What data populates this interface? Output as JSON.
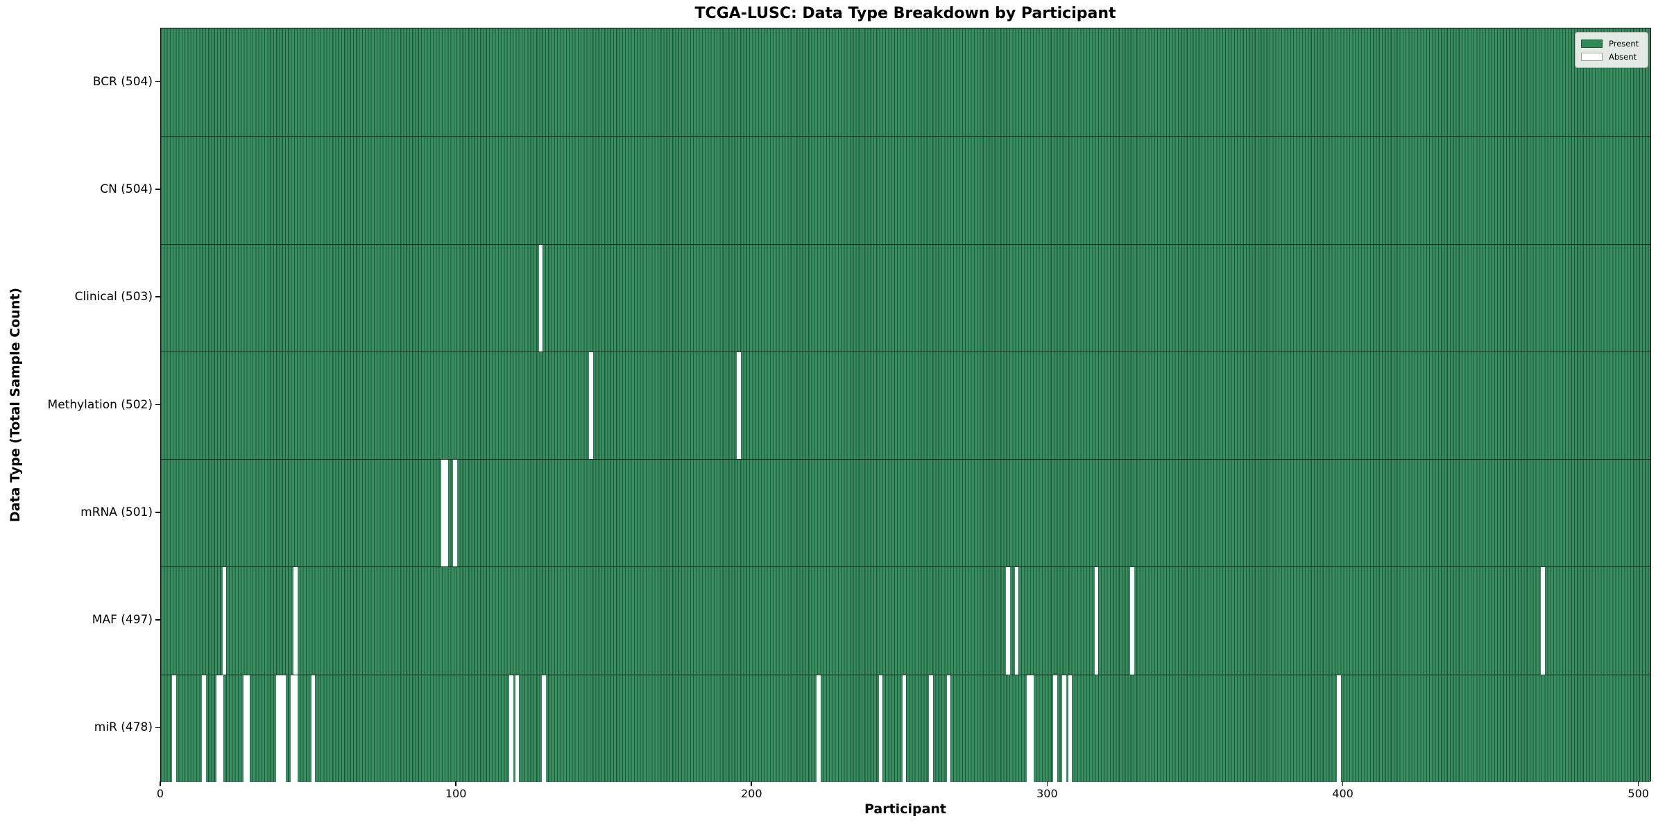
{
  "figure": {
    "title": "TCGA-LUSC: Data Type Breakdown by Participant",
    "xlabel": "Participant",
    "ylabel": "Data Type (Total Sample Count)"
  },
  "legend": {
    "position": "upper right",
    "items": [
      {
        "label": "Present",
        "color": "#2E8B57"
      },
      {
        "label": "Absent",
        "color": "#FFFFFF"
      }
    ]
  },
  "chart_data": {
    "type": "heatmap",
    "title": "TCGA-LUSC: Data Type Breakdown by Participant",
    "xlabel": "Participant",
    "ylabel": "Data Type (Total Sample Count)",
    "x_ticks": [
      0,
      100,
      200,
      300,
      400,
      500
    ],
    "xlim": [
      0,
      504.3
    ],
    "n_participants": 504,
    "grid": false,
    "colors": {
      "present_fill": "#388E61",
      "present_edge": "#1E5638",
      "present_legend": "#2E8B57",
      "absent": "#FFFFFF",
      "row_divider": "#0E2D1D"
    },
    "rows": [
      {
        "label": "BCR (504)",
        "total": 504,
        "absent": []
      },
      {
        "label": "CN (504)",
        "total": 504,
        "absent": []
      },
      {
        "label": "Clinical (503)",
        "total": 503,
        "absent": [
          128
        ]
      },
      {
        "label": "Methylation (502)",
        "total": 502,
        "absent": [
          145,
          195
        ]
      },
      {
        "label": "mRNA (501)",
        "total": 501,
        "absent": [
          95,
          96,
          99
        ]
      },
      {
        "label": "MAF (497)",
        "total": 497,
        "absent": [
          21,
          45,
          286,
          289,
          316,
          328,
          467
        ]
      },
      {
        "label": "miR (478)",
        "total": 478,
        "absent": [
          4,
          14,
          19,
          20,
          28,
          29,
          39,
          40,
          41,
          44,
          45,
          51,
          118,
          120,
          129,
          222,
          243,
          251,
          260,
          266,
          293,
          294,
          302,
          305,
          307,
          398
        ]
      }
    ]
  }
}
